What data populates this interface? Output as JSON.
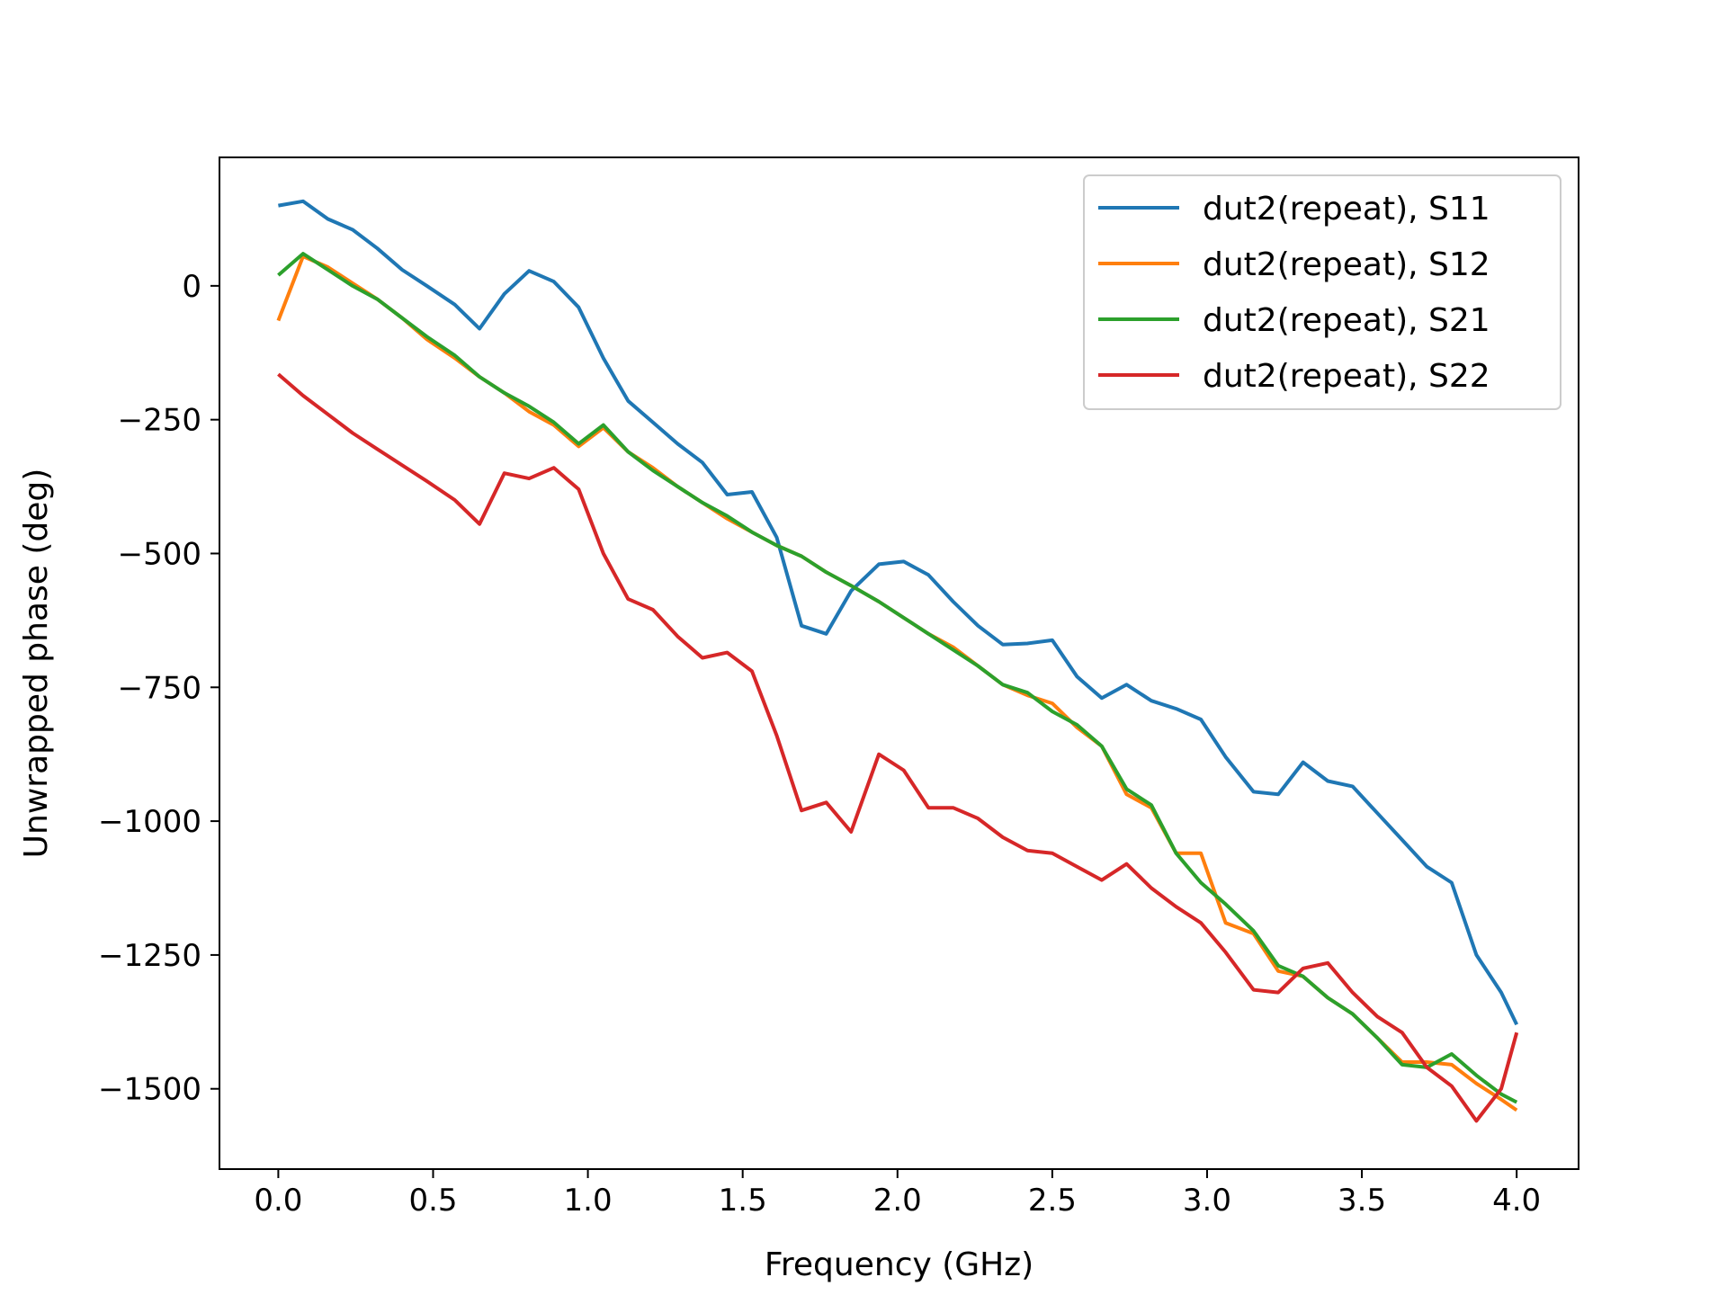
{
  "chart_data": {
    "type": "line",
    "title": "",
    "xlabel": "Frequency (GHz)",
    "ylabel": "Unwrapped phase (deg)",
    "xlim": [
      -0.19,
      4.2
    ],
    "ylim": [
      -1650,
      240
    ],
    "xticks": [
      0.0,
      0.5,
      1.0,
      1.5,
      2.0,
      2.5,
      3.0,
      3.5,
      4.0
    ],
    "xtick_labels": [
      "0.0",
      "0.5",
      "1.0",
      "1.5",
      "2.0",
      "2.5",
      "3.0",
      "3.5",
      "4.0"
    ],
    "yticks": [
      0,
      -250,
      -500,
      -750,
      -1000,
      -1250,
      -1500
    ],
    "ytick_labels": [
      "0",
      "−250",
      "−500",
      "−750",
      "−1000",
      "−1250",
      "−1500"
    ],
    "grid": false,
    "legend_position": "top-right",
    "x": [
      0.0,
      0.08,
      0.16,
      0.24,
      0.32,
      0.4,
      0.48,
      0.57,
      0.65,
      0.73,
      0.81,
      0.89,
      0.97,
      1.05,
      1.13,
      1.21,
      1.29,
      1.37,
      1.45,
      1.53,
      1.61,
      1.69,
      1.77,
      1.85,
      1.94,
      2.02,
      2.1,
      2.18,
      2.26,
      2.34,
      2.42,
      2.5,
      2.58,
      2.66,
      2.74,
      2.82,
      2.9,
      2.98,
      3.06,
      3.15,
      3.23,
      3.31,
      3.39,
      3.47,
      3.55,
      3.63,
      3.71,
      3.79,
      3.87,
      3.95,
      4.0
    ],
    "series": [
      {
        "name": "dut2(repeat), S11",
        "color": "#1f77b4",
        "values": [
          150,
          158,
          125,
          105,
          70,
          30,
          0,
          -35,
          -80,
          -15,
          28,
          8,
          -40,
          -135,
          -215,
          -255,
          -295,
          -330,
          -390,
          -385,
          -470,
          -635,
          -650,
          -570,
          -520,
          -515,
          -540,
          -590,
          -635,
          -670,
          -668,
          -662,
          -730,
          -770,
          -745,
          -775,
          -790,
          -810,
          -880,
          -945,
          -950,
          -890,
          -925,
          -935,
          -985,
          -1035,
          -1085,
          -1115,
          -1250,
          -1320,
          -1380
        ]
      },
      {
        "name": "dut2(repeat), S12",
        "color": "#ff7f0e",
        "values": [
          -65,
          55,
          35,
          5,
          -25,
          -60,
          -100,
          -135,
          -170,
          -200,
          -235,
          -260,
          -300,
          -265,
          -310,
          -340,
          -375,
          -405,
          -435,
          -460,
          -485,
          -505,
          -535,
          -560,
          -590,
          -620,
          -650,
          -675,
          -710,
          -745,
          -765,
          -780,
          -825,
          -860,
          -950,
          -975,
          -1060,
          -1060,
          -1190,
          -1210,
          -1280,
          -1290,
          -1330,
          -1360,
          -1405,
          -1450,
          -1450,
          -1455,
          -1490,
          -1520,
          -1540
        ]
      },
      {
        "name": "dut2(repeat), S21",
        "color": "#2ca02c",
        "values": [
          20,
          60,
          30,
          0,
          -25,
          -60,
          -95,
          -130,
          -170,
          -200,
          -225,
          -255,
          -295,
          -260,
          -310,
          -345,
          -375,
          -405,
          -430,
          -460,
          -485,
          -505,
          -535,
          -560,
          -590,
          -620,
          -650,
          -680,
          -710,
          -745,
          -760,
          -795,
          -820,
          -860,
          -940,
          -970,
          -1060,
          -1115,
          -1155,
          -1205,
          -1270,
          -1290,
          -1330,
          -1360,
          -1405,
          -1455,
          -1460,
          -1435,
          -1475,
          -1510,
          -1525
        ]
      },
      {
        "name": "dut2(repeat), S22",
        "color": "#d62728",
        "values": [
          -165,
          -205,
          -240,
          -275,
          -305,
          -335,
          -365,
          -400,
          -445,
          -350,
          -360,
          -340,
          -380,
          -500,
          -585,
          -605,
          -655,
          -695,
          -685,
          -720,
          -840,
          -980,
          -965,
          -1020,
          -875,
          -905,
          -975,
          -975,
          -995,
          -1030,
          -1055,
          -1060,
          -1085,
          -1110,
          -1080,
          -1125,
          -1160,
          -1190,
          -1245,
          -1315,
          -1320,
          -1275,
          -1265,
          -1320,
          -1365,
          -1395,
          -1460,
          -1495,
          -1560,
          -1500,
          -1395
        ]
      }
    ]
  }
}
